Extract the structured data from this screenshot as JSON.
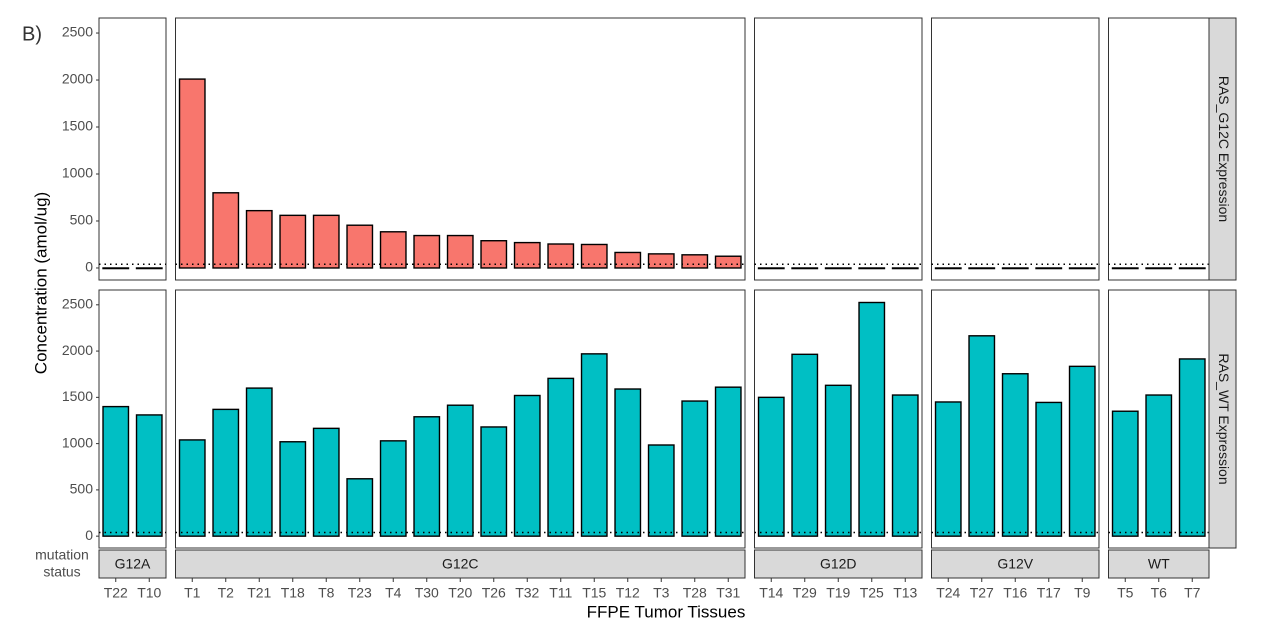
{
  "chart_data": {
    "type": "bar",
    "panel_tag": "B)",
    "y_label": "Concentration (amol/ug)",
    "x_label": "FFPE Tumor Tissues",
    "strip_title": [
      "mutation",
      "status"
    ],
    "ylim": [
      -128,
      2660
    ],
    "yticks": [
      0,
      500,
      1000,
      1500,
      2000,
      2500
    ],
    "reference_line": 40,
    "facets": [
      {
        "label": "G12A",
        "categories": [
          "T22",
          "T10"
        ]
      },
      {
        "label": "G12C",
        "categories": [
          "T1",
          "T2",
          "T21",
          "T18",
          "T8",
          "T23",
          "T4",
          "T30",
          "T20",
          "T26",
          "T32",
          "T11",
          "T15",
          "T12",
          "T3",
          "T28",
          "T31"
        ]
      },
      {
        "label": "G12D",
        "categories": [
          "T14",
          "T29",
          "T19",
          "T25",
          "T13"
        ]
      },
      {
        "label": "G12V",
        "categories": [
          "T24",
          "T27",
          "T16",
          "T17",
          "T9"
        ]
      },
      {
        "label": "WT",
        "categories": [
          "T5",
          "T6",
          "T7"
        ]
      }
    ],
    "series": [
      {
        "name": "RAS_G12C Expression",
        "color": "#f8766d",
        "values": [
          [
            0,
            0
          ],
          [
            2010,
            800,
            610,
            560,
            560,
            455,
            385,
            345,
            345,
            290,
            270,
            255,
            250,
            165,
            150,
            140,
            125
          ],
          [
            0,
            0,
            0,
            0,
            0
          ],
          [
            0,
            0,
            0,
            0,
            0
          ],
          [
            0,
            0,
            0
          ]
        ]
      },
      {
        "name": "RAS_WT Expression",
        "color": "#00bfc4",
        "values": [
          [
            1400,
            1310
          ],
          [
            1040,
            1370,
            1600,
            1020,
            1165,
            620,
            1030,
            1290,
            1415,
            1180,
            1520,
            1705,
            1970,
            1590,
            985,
            1460,
            1610
          ],
          [
            1500,
            1965,
            1630,
            2525,
            1525
          ],
          [
            1450,
            2165,
            1755,
            1445,
            1835
          ],
          [
            1350,
            1525,
            1915
          ]
        ]
      }
    ]
  }
}
